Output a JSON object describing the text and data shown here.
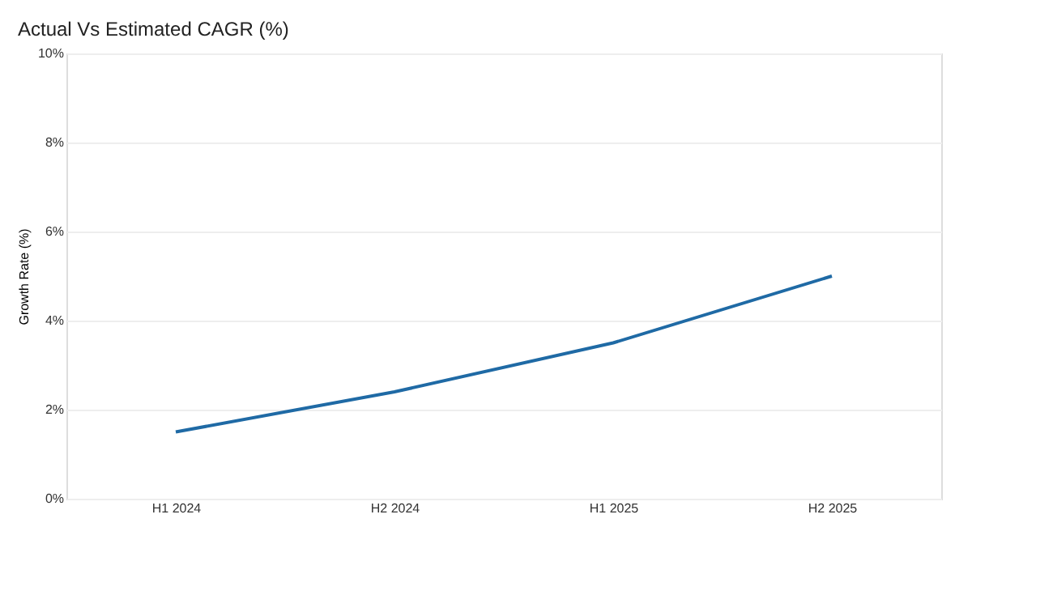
{
  "chart_data": {
    "type": "line",
    "title": "Actual Vs Estimated CAGR (%)",
    "ylabel": "Growth Rate (%)",
    "categories": [
      "H1 2024",
      "H2 2024",
      "H1 2025",
      "H2 2025"
    ],
    "series": [
      {
        "color": "#1f6aa5",
        "values": [
          1.5,
          2.4,
          3.5,
          5.0
        ]
      }
    ],
    "ylim": [
      0,
      10
    ],
    "yticks": [
      {
        "value": 0,
        "label": "0%"
      },
      {
        "value": 2,
        "label": "2%"
      },
      {
        "value": 4,
        "label": "4%"
      },
      {
        "value": 6,
        "label": "6%"
      },
      {
        "value": 8,
        "label": "8%"
      },
      {
        "value": 10,
        "label": "10%"
      }
    ],
    "grid": "y",
    "marker": "none",
    "line_style": "solid"
  }
}
